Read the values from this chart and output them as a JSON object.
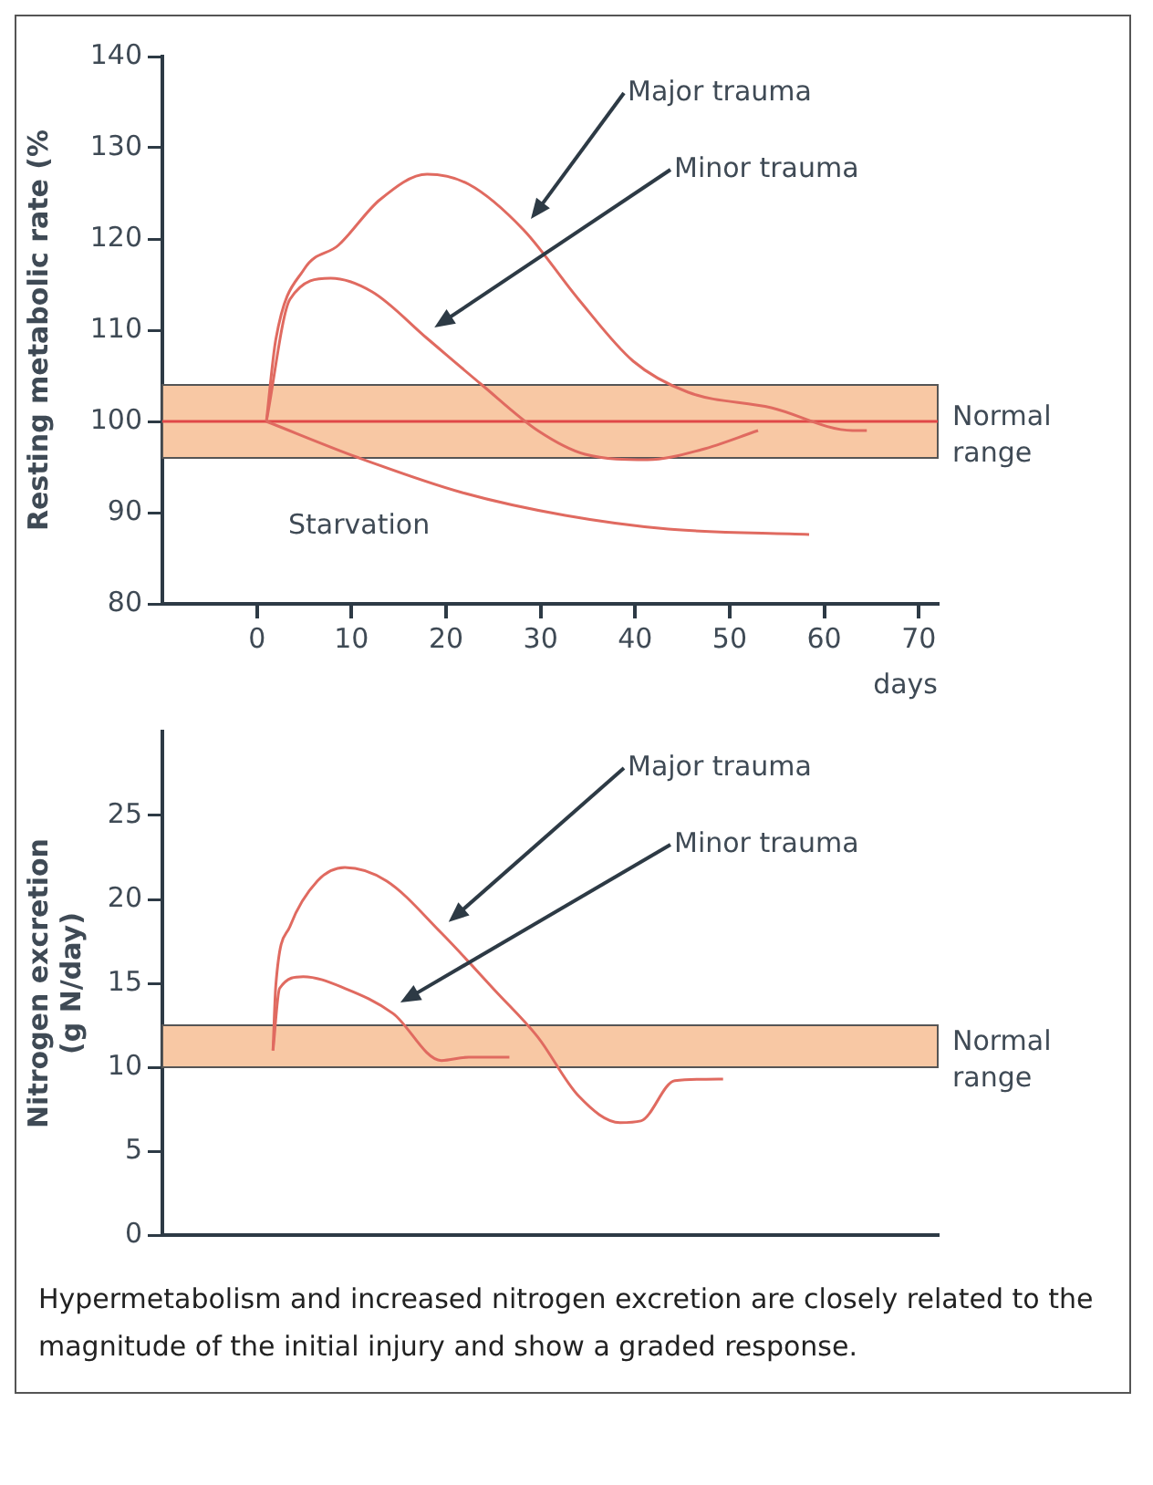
{
  "chart_data": [
    {
      "type": "line",
      "ylabel": "Resting metabolic rate (%",
      "xlabel": "days",
      "xlim": [
        -10,
        72
      ],
      "xticks": [
        0,
        10,
        20,
        30,
        40,
        50,
        60,
        70
      ],
      "ylim": [
        80,
        140
      ],
      "yticks": [
        80,
        90,
        100,
        110,
        120,
        130,
        140
      ],
      "grid": false,
      "legend": false,
      "marker": "none",
      "bands": [
        {
          "axis": "y",
          "from": 96,
          "to": 104,
          "label": "Normal range",
          "color": "#f8c8a4"
        }
      ],
      "ref_lines": [
        {
          "axis": "y",
          "value": 100,
          "color": "#e04848"
        }
      ],
      "series": [
        {
          "name": "Major trauma",
          "color": "#e06a60",
          "x": [
            1,
            2,
            5,
            8.6,
            13,
            18,
            22.4,
            28.2,
            34,
            39.8,
            45.6,
            54.4,
            63,
            64.5
          ],
          "values": [
            100,
            109,
            116.7,
            119.3,
            124.3,
            127.1,
            126,
            121,
            113.4,
            106.6,
            103.2,
            101.5,
            99,
            99
          ]
        },
        {
          "name": "Minor trauma",
          "color": "#e06a60",
          "x": [
            1,
            3.5,
            7.8,
            12.2,
            18,
            23.8,
            29.7,
            34.7,
            41.3,
            47,
            53
          ],
          "values": [
            100,
            113.4,
            115.7,
            114.2,
            109.1,
            104,
            99,
            96.4,
            95.8,
            96.9,
            99
          ]
        },
        {
          "name": "Starvation",
          "color": "#e06a60",
          "x": [
            1,
            10.8,
            21.7,
            32.6,
            43.5,
            58.4
          ],
          "values": [
            100,
            96,
            92.2,
            89.7,
            88.2,
            87.6
          ]
        }
      ]
    },
    {
      "type": "line",
      "ylabel": "Nitrogen excretion\n(g N/day)",
      "xlim": [
        -10,
        72
      ],
      "ylim": [
        0,
        30
      ],
      "yticks": [
        0,
        5,
        10,
        15,
        20,
        25
      ],
      "tick_labels": "y",
      "grid": false,
      "legend": false,
      "marker": "none",
      "bands": [
        {
          "axis": "y",
          "from": 10,
          "to": 12.5,
          "label": "Normal range",
          "color": "#f8c8a4"
        }
      ],
      "series": [
        {
          "name": "Major trauma",
          "color": "#e06a60",
          "x": [
            1.7,
            2,
            3.5,
            6.4,
            9.3,
            13.7,
            19.5,
            25.3,
            29.7,
            34,
            38.4,
            40.6,
            44.2,
            49.3
          ],
          "values": [
            11,
            14.9,
            18.4,
            21.1,
            21.9,
            21.1,
            18,
            14.5,
            11.8,
            8.3,
            6.7,
            6.8,
            9.2,
            9.3
          ]
        },
        {
          "name": "Minor trauma",
          "color": "#e06a60",
          "x": [
            1.7,
            2.4,
            4.9,
            9.3,
            14.4,
            19.5,
            22.4,
            26.7
          ],
          "values": [
            11,
            14.7,
            15.4,
            14.7,
            13.2,
            10.4,
            10.6,
            10.6
          ]
        }
      ],
      "annotations": [
        "Hypermetabolism and increased nitrogen excretion are closely related to the magnitude of the initial injury and show a graded response."
      ]
    }
  ]
}
